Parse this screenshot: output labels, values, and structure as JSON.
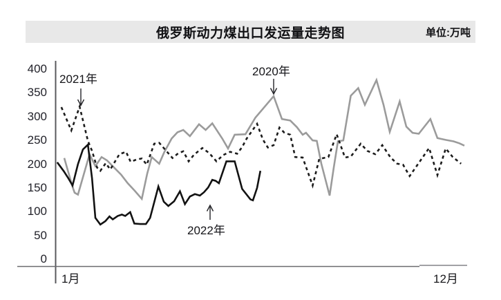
{
  "header": {
    "title": "俄罗斯动力煤出口发运量走势图",
    "unit_label": "单位:万吨"
  },
  "chart_data": {
    "type": "line",
    "title": "俄罗斯动力煤出口发运量走势图",
    "unit": "万吨",
    "grid": false,
    "legend_position": "inline-annotations",
    "y_axis": {
      "min": 0,
      "max": 400,
      "ticks": [
        400,
        350,
        300,
        250,
        200,
        150,
        100,
        50,
        0
      ]
    },
    "x_axis": {
      "unit": "week-of-year",
      "range": [
        1,
        50
      ],
      "start_label": "1月",
      "end_label": "12月"
    },
    "annotations": [
      {
        "label": "2021年",
        "arrow": "down"
      },
      {
        "label": "2020年",
        "arrow": "down"
      },
      {
        "label": "2022年",
        "arrow": "up"
      }
    ],
    "series": [
      {
        "name": "2020年",
        "color": "#9b9b9b",
        "line_style": "solid",
        "points": [
          [
            1.75,
            213
          ],
          [
            2.75,
            152
          ],
          [
            3.0,
            140
          ],
          [
            3.4,
            136
          ],
          [
            4.8,
            221
          ],
          [
            5.5,
            196
          ],
          [
            6.25,
            215
          ],
          [
            6.9,
            208
          ],
          [
            7.75,
            193
          ],
          [
            8.6,
            178
          ],
          [
            9.4,
            160
          ],
          [
            10.25,
            144
          ],
          [
            11.1,
            127
          ],
          [
            11.75,
            180
          ],
          [
            12.3,
            215
          ],
          [
            13.2,
            201
          ],
          [
            13.8,
            225
          ],
          [
            14.7,
            254
          ],
          [
            15.4,
            267
          ],
          [
            16.1,
            272
          ],
          [
            16.9,
            259
          ],
          [
            18.0,
            284
          ],
          [
            18.8,
            272
          ],
          [
            19.6,
            286
          ],
          [
            20.8,
            254
          ],
          [
            21.5,
            233
          ],
          [
            22.3,
            262
          ],
          [
            23.6,
            263
          ],
          [
            24.8,
            298
          ],
          [
            27.0,
            343
          ],
          [
            28.0,
            295
          ],
          [
            29.0,
            292
          ],
          [
            29.8,
            278
          ],
          [
            30.5,
            262
          ],
          [
            30.9,
            266
          ],
          [
            31.7,
            250
          ],
          [
            32.2,
            249
          ],
          [
            32.75,
            201
          ],
          [
            33.75,
            134
          ],
          [
            34.25,
            193
          ],
          [
            34.75,
            248
          ],
          [
            35.4,
            250
          ],
          [
            36.3,
            344
          ],
          [
            37.2,
            360
          ],
          [
            38.0,
            325
          ],
          [
            39.4,
            377
          ],
          [
            40.25,
            325
          ],
          [
            41.0,
            268
          ],
          [
            42.2,
            332
          ],
          [
            43.0,
            279
          ],
          [
            43.75,
            266
          ],
          [
            44.5,
            264
          ],
          [
            45.9,
            295
          ],
          [
            46.75,
            255
          ],
          [
            47.75,
            251
          ],
          [
            48.7,
            248
          ],
          [
            49.4,
            244
          ],
          [
            50.0,
            239
          ]
        ]
      },
      {
        "name": "2021年",
        "color": "#1c1c1c",
        "line_style": "dashed",
        "points": [
          [
            1.4,
            320
          ],
          [
            2.6,
            271
          ],
          [
            3.6,
            321
          ],
          [
            4.6,
            249
          ],
          [
            5.1,
            228
          ],
          [
            5.7,
            193
          ],
          [
            6.1,
            186
          ],
          [
            6.75,
            202
          ],
          [
            7.3,
            189
          ],
          [
            8.4,
            221
          ],
          [
            9.2,
            226
          ],
          [
            9.75,
            205
          ],
          [
            10.5,
            210
          ],
          [
            11.1,
            212
          ],
          [
            11.7,
            199
          ],
          [
            12.6,
            243
          ],
          [
            13.2,
            245
          ],
          [
            14.0,
            229
          ],
          [
            14.8,
            213
          ],
          [
            15.5,
            223
          ],
          [
            16.1,
            227
          ],
          [
            16.75,
            206
          ],
          [
            17.4,
            220
          ],
          [
            18.4,
            234
          ],
          [
            19.25,
            223
          ],
          [
            20.1,
            206
          ],
          [
            20.9,
            219
          ],
          [
            21.75,
            226
          ],
          [
            22.6,
            222
          ],
          [
            23.2,
            236
          ],
          [
            23.75,
            254
          ],
          [
            25.0,
            285
          ],
          [
            25.7,
            252
          ],
          [
            26.3,
            235
          ],
          [
            27.0,
            240
          ],
          [
            27.7,
            277
          ],
          [
            28.3,
            266
          ],
          [
            29.0,
            262
          ],
          [
            29.6,
            215
          ],
          [
            30.5,
            214
          ],
          [
            31.7,
            155
          ],
          [
            32.5,
            211
          ],
          [
            33.6,
            215
          ],
          [
            34.6,
            263
          ],
          [
            35.6,
            214
          ],
          [
            36.3,
            216
          ],
          [
            37.5,
            243
          ],
          [
            38.3,
            228
          ],
          [
            39.25,
            221
          ],
          [
            40.1,
            240
          ],
          [
            41.1,
            214
          ],
          [
            41.9,
            201
          ],
          [
            42.6,
            199
          ],
          [
            43.4,
            175
          ],
          [
            44.4,
            200
          ],
          [
            45.75,
            234
          ],
          [
            46.75,
            177
          ],
          [
            47.75,
            233
          ],
          [
            48.6,
            215
          ],
          [
            49.6,
            201
          ]
        ]
      },
      {
        "name": "2022年",
        "color": "#121212",
        "line_style": "solid",
        "points": [
          [
            0.9,
            204
          ],
          [
            1.7,
            185
          ],
          [
            2.25,
            170
          ],
          [
            2.75,
            155
          ],
          [
            3.4,
            200
          ],
          [
            4.0,
            231
          ],
          [
            4.6,
            241
          ],
          [
            5.1,
            170
          ],
          [
            5.5,
            87
          ],
          [
            6.1,
            73
          ],
          [
            6.7,
            80
          ],
          [
            7.2,
            90
          ],
          [
            7.6,
            84
          ],
          [
            8.2,
            91
          ],
          [
            8.7,
            94
          ],
          [
            9.1,
            91
          ],
          [
            9.7,
            99
          ],
          [
            10.2,
            75
          ],
          [
            10.9,
            74
          ],
          [
            11.6,
            74
          ],
          [
            12.1,
            87
          ],
          [
            13.1,
            153
          ],
          [
            13.75,
            121
          ],
          [
            14.3,
            112
          ],
          [
            15.0,
            122
          ],
          [
            15.7,
            143
          ],
          [
            16.3,
            116
          ],
          [
            16.9,
            132
          ],
          [
            17.5,
            137
          ],
          [
            18.1,
            134
          ],
          [
            18.6,
            141
          ],
          [
            19.1,
            151
          ],
          [
            19.6,
            167
          ],
          [
            20.0,
            165
          ],
          [
            20.4,
            160
          ],
          [
            21.3,
            206
          ],
          [
            22.3,
            206
          ],
          [
            23.2,
            148
          ],
          [
            24.2,
            126
          ],
          [
            24.5,
            124
          ],
          [
            25.0,
            150
          ],
          [
            25.4,
            186
          ]
        ]
      }
    ]
  }
}
